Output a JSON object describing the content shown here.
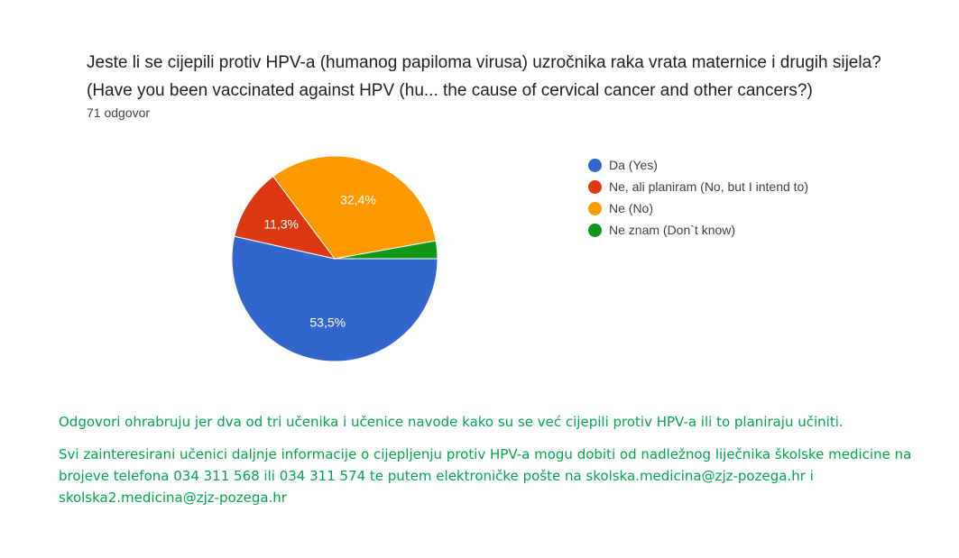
{
  "question": {
    "text": "Jeste li se cijepili protiv HPV-a (humanog papiloma virusa) uzročnika raka vrata maternice i drugih sijela?   (Have you been vaccinated against HPV (hu... the cause of cervical cancer and other cancers?)",
    "response_count": "71 odgovor"
  },
  "chart_data": {
    "type": "pie",
    "title": "",
    "slices": [
      {
        "label": "Da (Yes)",
        "value": 53.5,
        "display": "53,5%",
        "color": "#3366cc"
      },
      {
        "label": "Ne, ali planiram (No, but I intend to)",
        "value": 11.3,
        "display": "11,3%",
        "color": "#dc3912"
      },
      {
        "label": "Ne (No)",
        "value": 32.4,
        "display": "32,4%",
        "color": "#ff9900"
      },
      {
        "label": "Ne znam (Don`t know)",
        "value": 2.8,
        "display": "",
        "color": "#109618"
      }
    ],
    "legend_position": "right"
  },
  "notes": {
    "line1": "Odgovori ohrabruju jer dva od tri učenika i učenice navode kako su se već cijepili protiv HPV-a ili to planiraju učiniti.",
    "line2": "Svi zainteresirani učenici daljnje informacije o cijepljenju protiv HPV-a mogu dobiti od nadležnog liječnika školske medicine na brojeve telefona 034 311 568 ili 034 311 574 te putem elektroničke pošte na skolska.medicina@zjz-pozega.hr i skolska2.medicina@zjz-pozega.hr"
  }
}
